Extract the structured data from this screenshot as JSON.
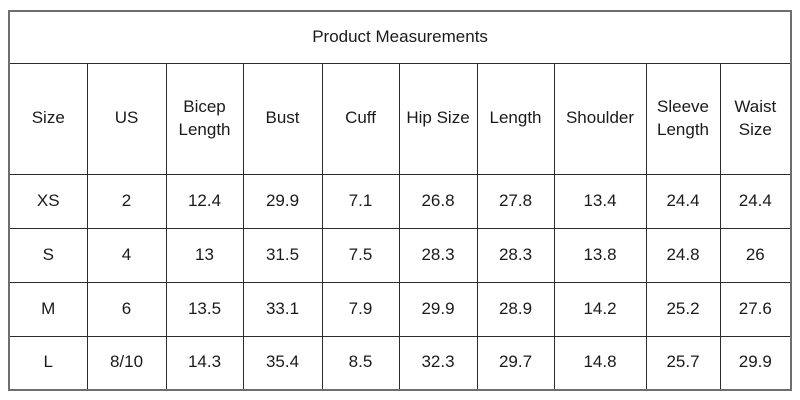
{
  "table": {
    "title": "Product Measurements",
    "columns": [
      "Size",
      "US",
      "Bicep Length",
      "Bust",
      "Cuff",
      "Hip Size",
      "Length",
      "Shoulder",
      "Sleeve Length",
      "Waist Size"
    ],
    "rows": [
      [
        "XS",
        "2",
        "12.4",
        "29.9",
        "7.1",
        "26.8",
        "27.8",
        "13.4",
        "24.4",
        "24.4"
      ],
      [
        "S",
        "4",
        "13",
        "31.5",
        "7.5",
        "28.3",
        "28.3",
        "13.8",
        "24.8",
        "26"
      ],
      [
        "M",
        "6",
        "13.5",
        "33.1",
        "7.9",
        "29.9",
        "28.9",
        "14.2",
        "25.2",
        "27.6"
      ],
      [
        "L",
        "8/10",
        "14.3",
        "35.4",
        "8.5",
        "32.3",
        "29.7",
        "14.8",
        "25.7",
        "29.9"
      ]
    ],
    "colors": {
      "background": "#ffffff",
      "text": "#1a1a1a",
      "inner_border": "#2b2b2b",
      "outer_border": "#6e6e6e"
    }
  }
}
